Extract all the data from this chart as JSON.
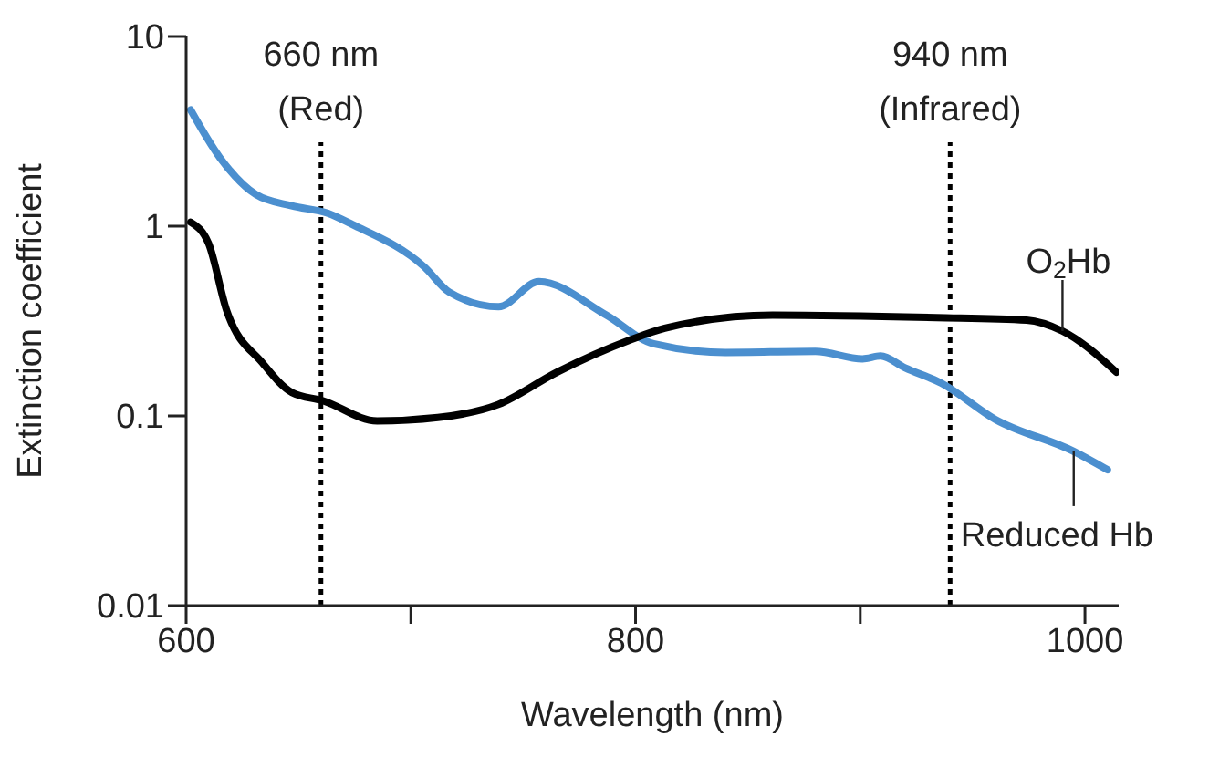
{
  "chart_data": {
    "type": "line",
    "xlabel": "Wavelength (nm)",
    "ylabel": "Extinction coefficient",
    "xlim": [
      600,
      1015
    ],
    "xticks": [
      600,
      {
        "value": 700,
        "label": null
      },
      800,
      {
        "value": 900,
        "label": null
      },
      1000
    ],
    "ylim": [
      0.01,
      10
    ],
    "yticks": [
      0.01,
      0.1,
      1,
      10
    ],
    "log": "y",
    "marker": "none",
    "line_style": "solid",
    "series": [
      {
        "name": "Reduced Hb",
        "color": "#4b8fcf",
        "x": [
          602,
          615,
          631,
          647,
          663,
          674,
          706,
          717,
          739,
          757,
          787,
          808,
          840,
          880,
          901,
          909,
          920,
          936,
          960,
          995,
          1010
        ],
        "values": [
          4.1,
          2.3,
          1.47,
          1.28,
          1.17,
          1.02,
          0.61,
          0.45,
          0.376,
          0.51,
          0.34,
          0.24,
          0.216,
          0.219,
          0.2,
          0.207,
          0.179,
          0.149,
          0.096,
          0.065,
          0.052
        ]
      },
      {
        "name": "O$_{2}$Hb",
        "color": "#000000",
        "x": [
          602,
          610,
          618,
          634,
          647,
          661,
          685,
          712,
          739,
          765,
          797,
          813,
          861,
          934,
          974,
          990,
          1014
        ],
        "values": [
          1.05,
          0.81,
          0.36,
          0.19,
          0.133,
          0.12,
          0.094,
          0.098,
          0.115,
          0.17,
          0.25,
          0.29,
          0.34,
          0.33,
          0.32,
          0.28,
          0.17
        ]
      }
    ],
    "ref_lines": [
      {
        "axis": "x",
        "value": 660,
        "label": "660 nm (Red)",
        "color": "#000000",
        "line_style": "dotted"
      },
      {
        "axis": "x",
        "value": 940,
        "label": "940 nm (Infrared)",
        "color": "#000000",
        "line_style": "dotted"
      }
    ]
  }
}
